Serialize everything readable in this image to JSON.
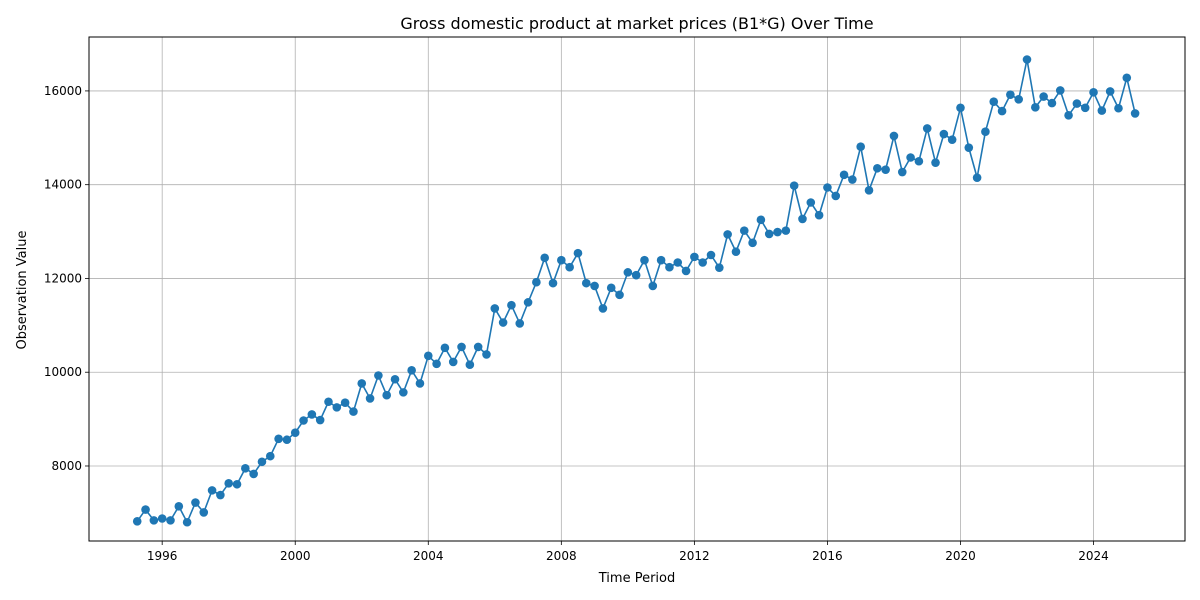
{
  "chart_data": {
    "type": "line",
    "title": "Gross domestic product at market prices (B1*G) Over Time",
    "xlabel": "Time Period",
    "ylabel": "Observation Value",
    "xlim": [
      1993.8,
      2026.75
    ],
    "ylim": [
      6400,
      17150
    ],
    "grid": true,
    "series_color": "#1f77b4",
    "x_ticks": [
      1996,
      2000,
      2004,
      2008,
      2012,
      2016,
      2020,
      2024
    ],
    "x_tick_labels": [
      "1996",
      "2000",
      "2004",
      "2008",
      "2012",
      "2016",
      "2020",
      "2024"
    ],
    "y_ticks": [
      8000,
      10000,
      12000,
      14000,
      16000
    ],
    "y_tick_labels": [
      "8000",
      "10000",
      "12000",
      "14000",
      "16000"
    ],
    "series": [
      {
        "x": [
          1995.25,
          1995.5,
          1995.75,
          1996.0,
          1996.25,
          1996.5,
          1996.75,
          1997.0,
          1997.25,
          1997.5,
          1997.75,
          1998.0,
          1998.25,
          1998.5,
          1998.75,
          1999.0,
          1999.25,
          1999.5,
          1999.75,
          2000.0,
          2000.25,
          2000.5,
          2000.75,
          2001.0,
          2001.25,
          2001.5,
          2001.75,
          2002.0,
          2002.25,
          2002.5,
          2002.75,
          2003.0,
          2003.25,
          2003.5,
          2003.75,
          2004.0,
          2004.25,
          2004.5,
          2004.75,
          2005.0,
          2005.25,
          2005.5,
          2005.75,
          2006.0,
          2006.25,
          2006.5,
          2006.75,
          2007.0,
          2007.25,
          2007.5,
          2007.75,
          2008.0,
          2008.25,
          2008.5,
          2008.75,
          2009.0,
          2009.25,
          2009.5,
          2009.75,
          2010.0,
          2010.25,
          2010.5,
          2010.75,
          2011.0,
          2011.25,
          2011.5,
          2011.75,
          2012.0,
          2012.25,
          2012.5,
          2012.75,
          2013.0,
          2013.25,
          2013.5,
          2013.75,
          2014.0,
          2014.25,
          2014.5,
          2014.75,
          2015.0,
          2015.25,
          2015.5,
          2015.75,
          2016.0,
          2016.25,
          2016.5,
          2016.75,
          2017.0,
          2017.25,
          2017.5,
          2017.75,
          2018.0,
          2018.25,
          2018.5,
          2018.75,
          2019.0,
          2019.25,
          2019.5,
          2019.75,
          2020.0,
          2020.25,
          2020.5,
          2020.75,
          2021.0,
          2021.25,
          2021.5,
          2021.75,
          2022.0,
          2022.25,
          2022.5,
          2022.75,
          2023.0,
          2023.25,
          2023.5,
          2023.75,
          2024.0,
          2024.25,
          2024.5,
          2024.75,
          2025.0,
          2025.25
        ],
        "y": [
          6820,
          7070,
          6840,
          6880,
          6840,
          7140,
          6800,
          7220,
          7010,
          7480,
          7380,
          7630,
          7610,
          7950,
          7830,
          8090,
          8210,
          8580,
          8560,
          8710,
          8970,
          9100,
          8980,
          9370,
          9250,
          9350,
          9160,
          9760,
          9440,
          9930,
          9510,
          9850,
          9570,
          10040,
          9760,
          10350,
          10180,
          10520,
          10220,
          10540,
          10160,
          10540,
          10380,
          11360,
          11060,
          11430,
          11040,
          11490,
          11920,
          12440,
          11900,
          12390,
          12240,
          12540,
          11900,
          11840,
          11360,
          11800,
          11650,
          12130,
          12070,
          12390,
          11840,
          12390,
          12240,
          12340,
          12160,
          12460,
          12340,
          12500,
          12230,
          12940,
          12570,
          13020,
          12760,
          13250,
          12950,
          12990,
          13020,
          13980,
          13270,
          13620,
          13350,
          13940,
          13760,
          14210,
          14110,
          14810,
          13880,
          14350,
          14320,
          15040,
          14270,
          14580,
          14500,
          15200,
          14470,
          15080,
          14960,
          15640,
          14790,
          14150,
          15130,
          15770,
          15570,
          15920,
          15820,
          16670,
          15650,
          15880,
          15740,
          16010,
          15480,
          15730,
          15640,
          15970,
          15580,
          15990,
          15630,
          16280,
          15520
        ]
      }
    ]
  }
}
